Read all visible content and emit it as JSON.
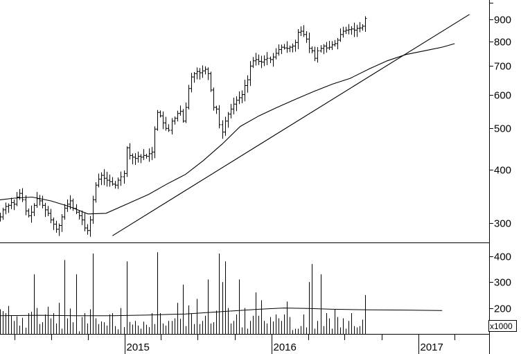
{
  "chart_data": [
    {
      "type": "ohlc",
      "title": "",
      "y_scale": "log",
      "ylim": [
        270,
        1000
      ],
      "y_ticks": [
        300,
        400,
        500,
        600,
        700,
        800,
        900
      ],
      "y_tick_labels": [
        "300",
        "400",
        "500",
        "600",
        "700",
        "800",
        "900"
      ],
      "x_range": [
        "2014-02-24",
        "2017-06-26"
      ],
      "x_tick_labels": [
        {
          "date": "2015-01-01",
          "label": "2015"
        },
        {
          "date": "2016-01-01",
          "label": "2016"
        },
        {
          "date": "2017-01-01",
          "label": "2017"
        }
      ],
      "weekly_close": [
        [
          310,
          322,
          328,
          330,
          335,
          332,
          345,
          352,
          340,
          320,
          312,
          318,
          330,
          342,
          338,
          330,
          322,
          316,
          305,
          298,
          290,
          296,
          310,
          325,
          332,
          338,
          325,
          318,
          312,
          305,
          292,
          288,
          305
        ],
        [
          340,
          368,
          380,
          388,
          382,
          378,
          375,
          370,
          368,
          378,
          385,
          392,
          450,
          432,
          428,
          425,
          430,
          428,
          432,
          430,
          436,
          440,
          498,
          545,
          535,
          515,
          500,
          495,
          520,
          528,
          542,
          548,
          520,
          560,
          620,
          660,
          672,
          680,
          675,
          682,
          688,
          672,
          615,
          560,
          555
        ],
        [
          510,
          490,
          520,
          540,
          555,
          570,
          582,
          590,
          600,
          630,
          650,
          700,
          720,
          725,
          718,
          715,
          725,
          730,
          725,
          735,
          750,
          765,
          775,
          772,
          770,
          775,
          780,
          795,
          840,
          845,
          830,
          810,
          770,
          760,
          730,
          760,
          770,
          780,
          772,
          775,
          785,
          790,
          805,
          830,
          845,
          850,
          852,
          855,
          850,
          858,
          860,
          868,
          905
        ]
      ],
      "series": [
        {
          "name": "",
          "type": "moving-average",
          "points": [
            [
              "2014-02-24",
              340
            ],
            [
              "2014-04-01",
              343
            ],
            [
              "2014-05-15",
              345
            ],
            [
              "2014-07-01",
              338
            ],
            [
              "2014-08-15",
              328
            ],
            [
              "2014-10-01",
              315
            ],
            [
              "2014-11-15",
              316
            ],
            [
              "2015-01-15",
              335
            ],
            [
              "2015-03-01",
              350
            ],
            [
              "2015-04-15",
              370
            ],
            [
              "2015-06-01",
              390
            ],
            [
              "2015-07-15",
              420
            ],
            [
              "2015-09-01",
              460
            ],
            [
              "2015-10-15",
              505
            ],
            [
              "2015-12-01",
              535
            ],
            [
              "2016-01-15",
              560
            ],
            [
              "2016-03-01",
              585
            ],
            [
              "2016-04-15",
              610
            ],
            [
              "2016-06-01",
              635
            ],
            [
              "2016-07-15",
              655
            ],
            [
              "2016-09-01",
              690
            ],
            [
              "2016-10-15",
              720
            ],
            [
              "2016-12-01",
              745
            ],
            [
              "2017-01-15",
              760
            ],
            [
              "2017-03-01",
              775
            ],
            [
              "2017-04-01",
              790
            ]
          ]
        },
        {
          "name": "",
          "type": "trend-line",
          "points": [
            [
              "2014-12-01",
              280
            ],
            [
              "2017-05-08",
              925
            ]
          ]
        }
      ]
    },
    {
      "type": "bar",
      "title": "",
      "unit_label": "x1000",
      "ylim": [
        100,
        450
      ],
      "y_ticks": [
        200,
        300,
        400
      ],
      "y_tick_labels": [
        "200",
        "300",
        "400"
      ],
      "weekly_volume": [
        [
          195,
          188,
          180,
          208,
          172,
          150,
          168,
          132,
          162,
          124,
          180,
          185,
          330,
          200,
          138,
          145,
          175,
          205,
          160,
          180,
          140,
          220,
          120,
          385,
          160,
          198,
          145,
          330,
          110,
          165,
          180,
          140,
          195
        ],
        [
          410,
          160,
          138,
          148,
          145,
          132,
          175,
          180,
          130,
          118,
          200,
          126,
          380,
          146,
          136,
          150,
          132,
          120,
          147,
          135,
          126,
          180,
          138,
          415,
          180,
          140,
          132,
          150,
          150,
          160,
          220,
          158,
          290,
          130,
          210,
          178,
          138,
          235,
          138,
          150,
          170,
          310,
          140,
          145,
          190
        ],
        [
          410,
          300,
          380,
          200,
          140,
          150,
          175,
          310,
          125,
          200,
          120,
          150,
          170,
          260,
          170,
          230,
          150,
          140,
          165,
          148,
          175,
          160,
          150,
          175,
          225,
          165,
          115,
          120,
          120,
          130,
          175,
          125,
          300,
          370,
          120,
          150,
          330,
          130,
          180,
          160,
          120,
          195,
          165,
          125,
          160,
          120,
          150,
          180,
          130,
          125,
          130,
          155,
          250
        ]
      ],
      "series": [
        {
          "name": "",
          "type": "moving-average",
          "points": [
            [
              "2014-02-24",
              170
            ],
            [
              "2014-06-01",
              172
            ],
            [
              "2014-09-01",
              170
            ],
            [
              "2014-12-01",
              170
            ],
            [
              "2015-03-01",
              173
            ],
            [
              "2015-06-01",
              177
            ],
            [
              "2015-09-01",
              186
            ],
            [
              "2015-12-01",
              195
            ],
            [
              "2016-02-01",
              200
            ],
            [
              "2016-04-01",
              198
            ],
            [
              "2016-06-01",
              195
            ],
            [
              "2016-09-01",
              193
            ],
            [
              "2016-12-01",
              192
            ],
            [
              "2017-03-01",
              190
            ]
          ]
        }
      ]
    }
  ]
}
